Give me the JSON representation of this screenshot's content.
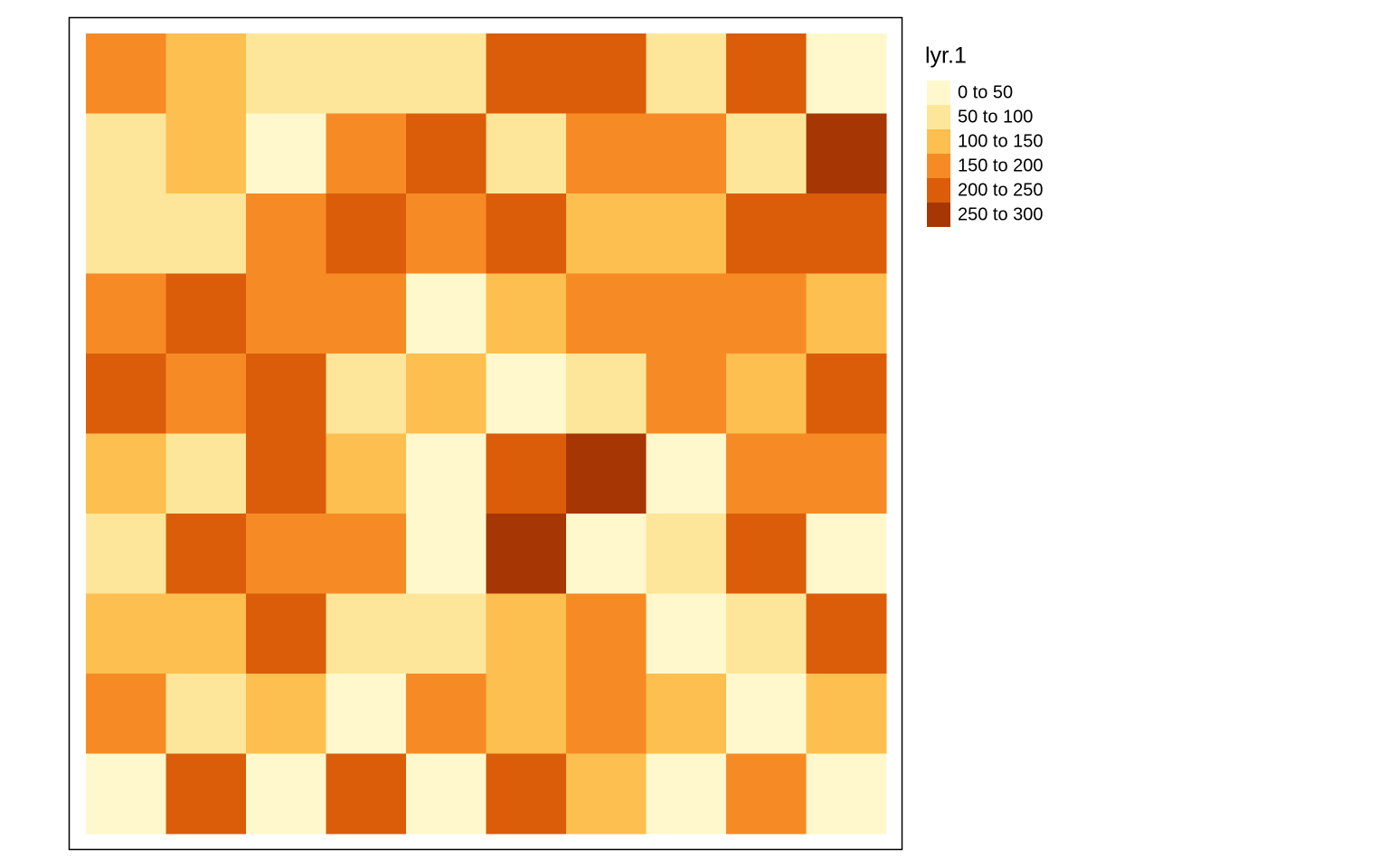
{
  "chart_data": {
    "type": "raster",
    "legend_title": "lyr.1",
    "breaks": [
      0,
      50,
      100,
      150,
      200,
      250,
      300
    ],
    "classes": [
      {
        "label": "0 to 50",
        "color": "#fff8cc"
      },
      {
        "label": "50 to 100",
        "color": "#fde699"
      },
      {
        "label": "100 to 150",
        "color": "#fdbf4f"
      },
      {
        "label": "150 to 200",
        "color": "#f68b25"
      },
      {
        "label": "200 to 250",
        "color": "#db5d0a"
      },
      {
        "label": "250 to 300",
        "color": "#a63603"
      }
    ],
    "values": [
      [
        175,
        125,
        75,
        75,
        75,
        225,
        225,
        75,
        225,
        25
      ],
      [
        75,
        125,
        25,
        175,
        225,
        75,
        175,
        175,
        75,
        275
      ],
      [
        75,
        75,
        175,
        225,
        175,
        225,
        125,
        125,
        225,
        225
      ],
      [
        175,
        225,
        175,
        175,
        25,
        125,
        175,
        175,
        175,
        125
      ],
      [
        225,
        175,
        225,
        75,
        125,
        25,
        75,
        175,
        125,
        225
      ],
      [
        125,
        75,
        225,
        125,
        25,
        225,
        275,
        25,
        175,
        175
      ],
      [
        75,
        225,
        175,
        175,
        25,
        275,
        25,
        75,
        225,
        25
      ],
      [
        125,
        125,
        225,
        75,
        75,
        125,
        175,
        25,
        75,
        225
      ],
      [
        175,
        75,
        125,
        25,
        175,
        125,
        175,
        125,
        25,
        125
      ],
      [
        25,
        225,
        25,
        225,
        25,
        225,
        125,
        25,
        175,
        25
      ]
    ]
  }
}
